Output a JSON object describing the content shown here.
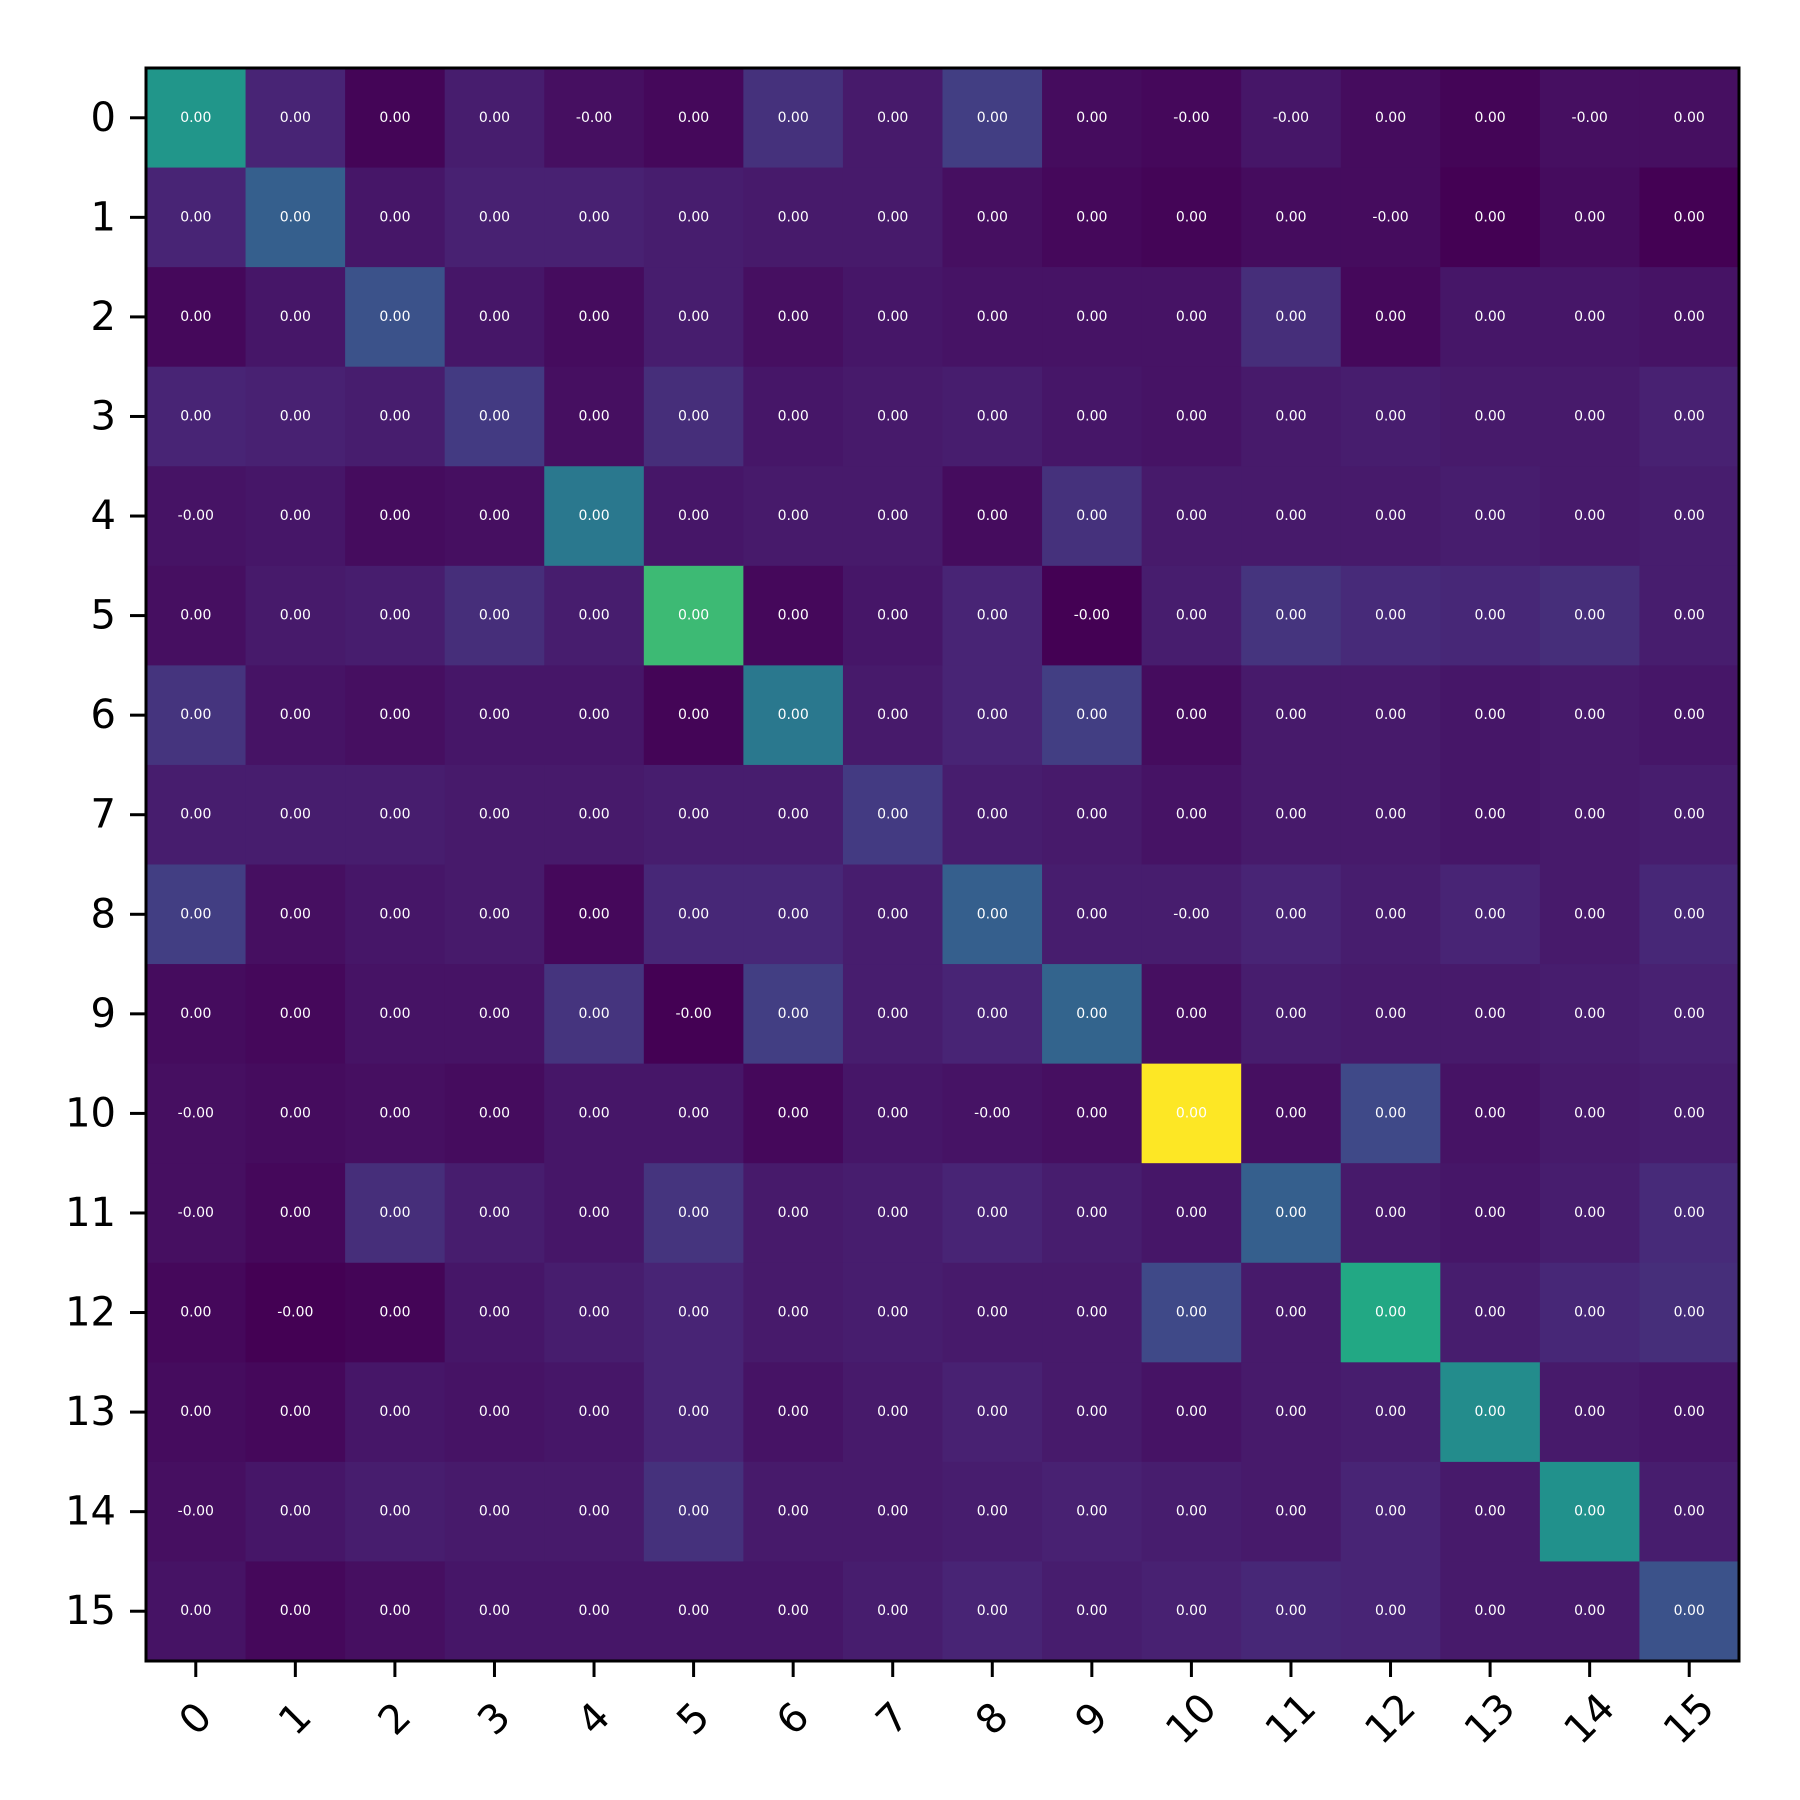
{
  "chart_data": {
    "type": "heatmap",
    "colormap": "viridis",
    "title": "",
    "xlabel": "",
    "ylabel": "",
    "x_tick_labels": [
      "0",
      "1",
      "2",
      "3",
      "4",
      "5",
      "6",
      "7",
      "8",
      "9",
      "10",
      "11",
      "12",
      "13",
      "14",
      "15"
    ],
    "y_tick_labels": [
      "0",
      "1",
      "2",
      "3",
      "4",
      "5",
      "6",
      "7",
      "8",
      "9",
      "10",
      "11",
      "12",
      "13",
      "14",
      "15"
    ],
    "x_tick_rotation_deg": 45,
    "grid": false,
    "colorbar": false,
    "cell_value_labels": [
      [
        "0.00",
        "0.00",
        "0.00",
        "0.00",
        "-0.00",
        "0.00",
        "0.00",
        "0.00",
        "0.00",
        "0.00",
        "-0.00",
        "-0.00",
        "0.00",
        "0.00",
        "-0.00",
        "0.00"
      ],
      [
        "0.00",
        "0.00",
        "0.00",
        "0.00",
        "0.00",
        "0.00",
        "0.00",
        "0.00",
        "0.00",
        "0.00",
        "0.00",
        "0.00",
        "-0.00",
        "0.00",
        "0.00",
        "0.00"
      ],
      [
        "0.00",
        "0.00",
        "0.00",
        "0.00",
        "0.00",
        "0.00",
        "0.00",
        "0.00",
        "0.00",
        "0.00",
        "0.00",
        "0.00",
        "0.00",
        "0.00",
        "0.00",
        "0.00"
      ],
      [
        "0.00",
        "0.00",
        "0.00",
        "0.00",
        "0.00",
        "0.00",
        "0.00",
        "0.00",
        "0.00",
        "0.00",
        "0.00",
        "0.00",
        "0.00",
        "0.00",
        "0.00",
        "0.00"
      ],
      [
        "-0.00",
        "0.00",
        "0.00",
        "0.00",
        "0.00",
        "0.00",
        "0.00",
        "0.00",
        "0.00",
        "0.00",
        "0.00",
        "0.00",
        "0.00",
        "0.00",
        "0.00",
        "0.00"
      ],
      [
        "0.00",
        "0.00",
        "0.00",
        "0.00",
        "0.00",
        "0.00",
        "0.00",
        "0.00",
        "0.00",
        "-0.00",
        "0.00",
        "0.00",
        "0.00",
        "0.00",
        "0.00",
        "0.00"
      ],
      [
        "0.00",
        "0.00",
        "0.00",
        "0.00",
        "0.00",
        "0.00",
        "0.00",
        "0.00",
        "0.00",
        "0.00",
        "0.00",
        "0.00",
        "0.00",
        "0.00",
        "0.00",
        "0.00"
      ],
      [
        "0.00",
        "0.00",
        "0.00",
        "0.00",
        "0.00",
        "0.00",
        "0.00",
        "0.00",
        "0.00",
        "0.00",
        "0.00",
        "0.00",
        "0.00",
        "0.00",
        "0.00",
        "0.00"
      ],
      [
        "0.00",
        "0.00",
        "0.00",
        "0.00",
        "0.00",
        "0.00",
        "0.00",
        "0.00",
        "0.00",
        "0.00",
        "-0.00",
        "0.00",
        "0.00",
        "0.00",
        "0.00",
        "0.00"
      ],
      [
        "0.00",
        "0.00",
        "0.00",
        "0.00",
        "0.00",
        "-0.00",
        "0.00",
        "0.00",
        "0.00",
        "0.00",
        "0.00",
        "0.00",
        "0.00",
        "0.00",
        "0.00",
        "0.00"
      ],
      [
        "-0.00",
        "0.00",
        "0.00",
        "0.00",
        "0.00",
        "0.00",
        "0.00",
        "0.00",
        "-0.00",
        "0.00",
        "0.00",
        "0.00",
        "0.00",
        "0.00",
        "0.00",
        "0.00"
      ],
      [
        "-0.00",
        "0.00",
        "0.00",
        "0.00",
        "0.00",
        "0.00",
        "0.00",
        "0.00",
        "0.00",
        "0.00",
        "0.00",
        "0.00",
        "0.00",
        "0.00",
        "0.00",
        "0.00"
      ],
      [
        "0.00",
        "-0.00",
        "0.00",
        "0.00",
        "0.00",
        "0.00",
        "0.00",
        "0.00",
        "0.00",
        "0.00",
        "0.00",
        "0.00",
        "0.00",
        "0.00",
        "0.00",
        "0.00"
      ],
      [
        "0.00",
        "0.00",
        "0.00",
        "0.00",
        "0.00",
        "0.00",
        "0.00",
        "0.00",
        "0.00",
        "0.00",
        "0.00",
        "0.00",
        "0.00",
        "0.00",
        "0.00",
        "0.00"
      ],
      [
        "-0.00",
        "0.00",
        "0.00",
        "0.00",
        "0.00",
        "0.00",
        "0.00",
        "0.00",
        "0.00",
        "0.00",
        "0.00",
        "0.00",
        "0.00",
        "0.00",
        "0.00",
        "0.00"
      ],
      [
        "0.00",
        "0.00",
        "0.00",
        "0.00",
        "0.00",
        "0.00",
        "0.00",
        "0.00",
        "0.00",
        "0.00",
        "0.00",
        "0.00",
        "0.00",
        "0.00",
        "0.00",
        "0.00"
      ]
    ],
    "relative_intensity": [
      [
        0.52,
        0.1,
        0.01,
        0.08,
        0.04,
        0.02,
        0.14,
        0.07,
        0.18,
        0.03,
        0.02,
        0.06,
        0.03,
        0.01,
        0.04,
        0.04
      ],
      [
        0.1,
        0.3,
        0.06,
        0.09,
        0.09,
        0.08,
        0.07,
        0.07,
        0.04,
        0.02,
        0.01,
        0.03,
        0.03,
        0.0,
        0.03,
        0.0
      ],
      [
        0.02,
        0.06,
        0.25,
        0.06,
        0.03,
        0.08,
        0.04,
        0.06,
        0.05,
        0.05,
        0.05,
        0.13,
        0.02,
        0.06,
        0.06,
        0.05
      ],
      [
        0.1,
        0.09,
        0.08,
        0.17,
        0.04,
        0.13,
        0.06,
        0.07,
        0.08,
        0.06,
        0.05,
        0.07,
        0.08,
        0.07,
        0.07,
        0.09
      ],
      [
        0.05,
        0.06,
        0.03,
        0.04,
        0.4,
        0.06,
        0.07,
        0.07,
        0.03,
        0.14,
        0.07,
        0.07,
        0.07,
        0.08,
        0.07,
        0.08
      ],
      [
        0.04,
        0.07,
        0.08,
        0.13,
        0.08,
        0.68,
        0.02,
        0.06,
        0.1,
        0.0,
        0.08,
        0.15,
        0.12,
        0.11,
        0.13,
        0.08
      ],
      [
        0.15,
        0.05,
        0.04,
        0.06,
        0.06,
        0.01,
        0.4,
        0.07,
        0.1,
        0.18,
        0.03,
        0.07,
        0.07,
        0.06,
        0.07,
        0.06
      ],
      [
        0.08,
        0.08,
        0.08,
        0.07,
        0.07,
        0.08,
        0.08,
        0.17,
        0.08,
        0.07,
        0.05,
        0.07,
        0.07,
        0.06,
        0.07,
        0.08
      ],
      [
        0.18,
        0.04,
        0.06,
        0.07,
        0.02,
        0.11,
        0.11,
        0.08,
        0.3,
        0.08,
        0.08,
        0.1,
        0.08,
        0.1,
        0.07,
        0.11
      ],
      [
        0.03,
        0.02,
        0.05,
        0.05,
        0.15,
        0.0,
        0.18,
        0.08,
        0.1,
        0.32,
        0.04,
        0.08,
        0.07,
        0.07,
        0.08,
        0.09
      ],
      [
        0.04,
        0.03,
        0.04,
        0.03,
        0.06,
        0.06,
        0.02,
        0.06,
        0.05,
        0.04,
        1.0,
        0.04,
        0.22,
        0.05,
        0.07,
        0.08
      ],
      [
        0.04,
        0.02,
        0.13,
        0.08,
        0.06,
        0.15,
        0.07,
        0.08,
        0.1,
        0.08,
        0.06,
        0.3,
        0.07,
        0.06,
        0.08,
        0.12
      ],
      [
        0.02,
        0.0,
        0.01,
        0.06,
        0.08,
        0.1,
        0.07,
        0.08,
        0.07,
        0.07,
        0.22,
        0.07,
        0.6,
        0.08,
        0.11,
        0.13
      ],
      [
        0.03,
        0.02,
        0.06,
        0.05,
        0.06,
        0.1,
        0.05,
        0.07,
        0.09,
        0.07,
        0.05,
        0.07,
        0.08,
        0.48,
        0.07,
        0.06
      ],
      [
        0.04,
        0.06,
        0.08,
        0.07,
        0.07,
        0.14,
        0.07,
        0.07,
        0.08,
        0.09,
        0.08,
        0.07,
        0.1,
        0.07,
        0.5,
        0.08
      ],
      [
        0.05,
        0.02,
        0.04,
        0.06,
        0.06,
        0.06,
        0.06,
        0.08,
        0.1,
        0.08,
        0.09,
        0.11,
        0.1,
        0.07,
        0.07,
        0.25
      ]
    ]
  }
}
